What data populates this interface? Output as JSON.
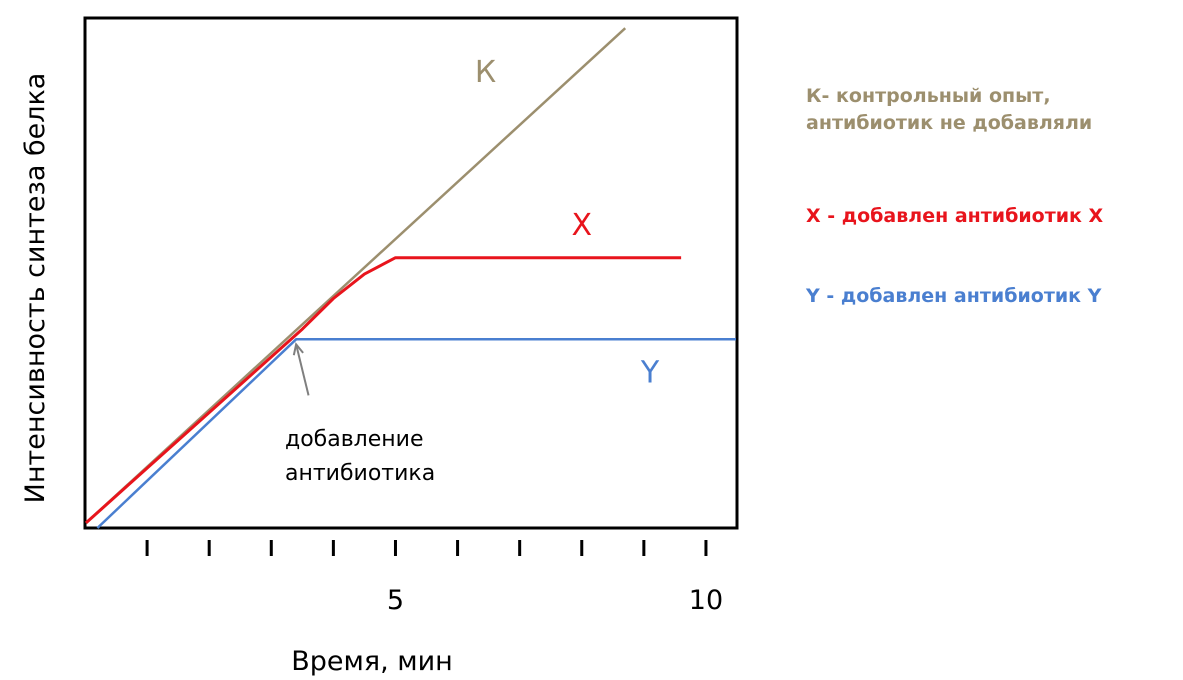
{
  "chart_data": {
    "type": "line",
    "xlabel": "Время, мин",
    "ylabel": "Интенсивность синтеза белка",
    "x_tick_labels": [
      "5",
      "10"
    ],
    "xlim": [
      0,
      10.5
    ],
    "ylim": [
      0,
      10
    ],
    "grid": false,
    "legend_position": "right",
    "series": [
      {
        "name": "К",
        "color": "#9c8f6e",
        "points": [
          [
            0,
            0.1
          ],
          [
            8.7,
            9.8
          ]
        ]
      },
      {
        "name": "X",
        "color": "#e8141c",
        "points": [
          [
            0,
            0.1
          ],
          [
            3.5,
            3.9
          ],
          [
            4.0,
            4.5
          ],
          [
            4.5,
            4.98
          ],
          [
            5.0,
            5.3
          ],
          [
            9.6,
            5.3
          ]
        ]
      },
      {
        "name": "Y",
        "color": "#4a7fd0",
        "points": [
          [
            0.2,
            0.0
          ],
          [
            3.4,
            3.7
          ],
          [
            11.0,
            3.7
          ]
        ]
      }
    ],
    "annotation": {
      "text_lines": [
        "добавление",
        "антибиотика"
      ],
      "arrow_from": [
        3.6,
        2.6
      ],
      "arrow_to": [
        3.4,
        3.6
      ],
      "color": "#7f7f7f"
    },
    "legend": [
      {
        "lines": [
          "К- контрольный опыт,",
          "антибиотик не добавляли"
        ],
        "color": "#9c8f6e"
      },
      {
        "lines": [
          "X - добавлен антибиотик X"
        ],
        "color": "#e8141c"
      },
      {
        "lines": [
          "Y - добавлен антибиотик Y"
        ],
        "color": "#4a7fd0"
      }
    ]
  }
}
